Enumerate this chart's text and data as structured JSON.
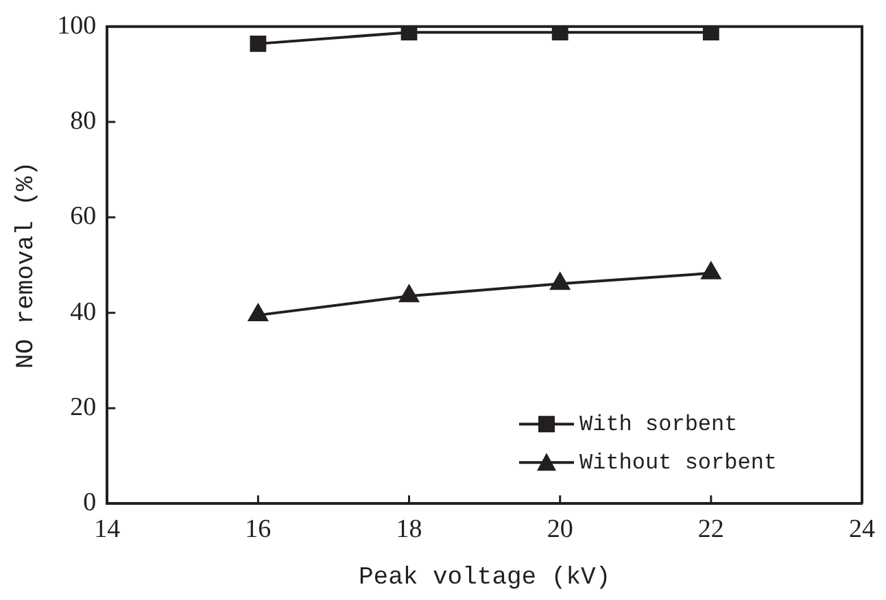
{
  "chart_data": {
    "type": "line",
    "xlabel": "Peak voltage (kV)",
    "ylabel": "NO removal (%)",
    "x": [
      16,
      18,
      20,
      22
    ],
    "series": [
      {
        "name": "With sorbent",
        "color": "#231f20",
        "marker": "square",
        "values": [
          96.4,
          98.8,
          98.8,
          98.8
        ]
      },
      {
        "name": "Without sorbent",
        "color": "#231f20",
        "marker": "triangle",
        "values": [
          39.5,
          43.5,
          46.1,
          48.3
        ]
      }
    ],
    "xlim": [
      14,
      24
    ],
    "xticks": [
      14,
      16,
      18,
      20,
      22,
      24
    ],
    "ylim": [
      0,
      100
    ],
    "yticks": [
      0,
      20,
      40,
      60,
      80,
      100
    ],
    "grid": false,
    "legend": "bottom right",
    "line_style": "solid"
  }
}
